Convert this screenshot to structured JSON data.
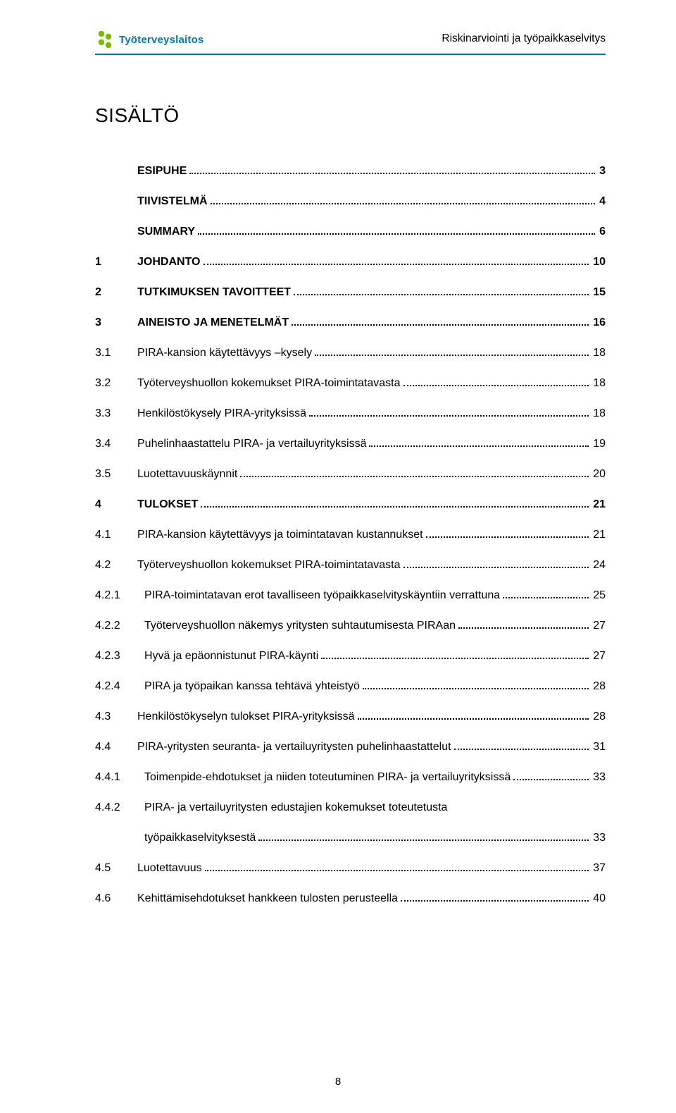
{
  "header": {
    "logo_text": "Työterveyslaitos",
    "doc_title": "Riskinarviointi ja työpaikkaselvitys",
    "logo_color": "#7ab800",
    "brand_color": "#0079a5"
  },
  "title": "SISÄLTÖ",
  "toc": [
    {
      "num": "",
      "label": "ESIPUHE",
      "page": "3",
      "bold": true,
      "num_w": "n"
    },
    {
      "num": "",
      "label": "TIIVISTELMÄ",
      "page": "4",
      "bold": true,
      "num_w": "n"
    },
    {
      "num": "",
      "label": "SUMMARY",
      "page": "6",
      "bold": true,
      "num_w": "n"
    },
    {
      "num": "1",
      "label": "JOHDANTO",
      "page": "10",
      "bold": true,
      "num_w": "n"
    },
    {
      "num": "2",
      "label": "TUTKIMUKSEN TAVOITTEET",
      "page": "15",
      "bold": true,
      "num_w": "n"
    },
    {
      "num": "3",
      "label": "AINEISTO JA MENETELMÄT",
      "page": "16",
      "bold": true,
      "num_w": "n"
    },
    {
      "num": "3.1",
      "label": "PIRA-kansion käytettävyys –kysely",
      "page": "18",
      "bold": false,
      "num_w": "n"
    },
    {
      "num": "3.2",
      "label": "Työterveyshuollon kokemukset PIRA-toimintatavasta",
      "page": "18",
      "bold": false,
      "num_w": "n"
    },
    {
      "num": "3.3",
      "label": "Henkilöstökysely PIRA-yrityksissä",
      "page": "18",
      "bold": false,
      "num_w": "n"
    },
    {
      "num": "3.4",
      "label": "Puhelinhaastattelu PIRA- ja vertailuyrityksissä",
      "page": "19",
      "bold": false,
      "num_w": "n"
    },
    {
      "num": "3.5",
      "label": "Luotettavuuskäynnit",
      "page": "20",
      "bold": false,
      "num_w": "n"
    },
    {
      "num": "4",
      "label": "TULOKSET",
      "page": "21",
      "bold": true,
      "num_w": "n"
    },
    {
      "num": "4.1",
      "label": "PIRA-kansion käytettävyys ja toimintatavan kustannukset",
      "page": "21",
      "bold": false,
      "num_w": "n"
    },
    {
      "num": "4.2",
      "label": "Työterveyshuollon kokemukset PIRA-toimintatavasta",
      "page": "24",
      "bold": false,
      "num_w": "n"
    },
    {
      "num": "4.2.1",
      "label": "PIRA-toimintatavan erot tavalliseen työpaikkaselvityskäyntiin verrattuna",
      "page": "25",
      "bold": false,
      "num_w": "w"
    },
    {
      "num": "4.2.2",
      "label": "Työterveyshuollon näkemys yritysten suhtautumisesta PIRAan",
      "page": "27",
      "bold": false,
      "num_w": "w"
    },
    {
      "num": "4.2.3",
      "label": "Hyvä ja epäonnistunut PIRA-käynti",
      "page": "27",
      "bold": false,
      "num_w": "w"
    },
    {
      "num": "4.2.4",
      "label": "PIRA ja työpaikan kanssa tehtävä yhteistyö",
      "page": "28",
      "bold": false,
      "num_w": "w"
    },
    {
      "num": "4.3",
      "label": "Henkilöstökyselyn tulokset PIRA-yrityksissä",
      "page": "28",
      "bold": false,
      "num_w": "n"
    },
    {
      "num": "4.4",
      "label": "PIRA-yritysten seuranta- ja vertailuyritysten puhelinhaastattelut",
      "page": "31",
      "bold": false,
      "num_w": "n"
    },
    {
      "num": "4.4.1",
      "label": "Toimenpide-ehdotukset ja niiden toteutuminen PIRA- ja vertailuyrityksissä",
      "page": "33",
      "bold": false,
      "num_w": "w"
    }
  ],
  "toc_multi": {
    "num": "4.4.2",
    "line1": "PIRA- ja vertailuyritysten edustajien kokemukset toteutetusta",
    "line2": "työpaikkaselvityksestä",
    "page": "33"
  },
  "toc_tail": [
    {
      "num": "4.5",
      "label": "Luotettavuus",
      "page": "37",
      "bold": false,
      "num_w": "n"
    },
    {
      "num": "4.6",
      "label": "Kehittämisehdotukset hankkeen tulosten perusteella",
      "page": "40",
      "bold": false,
      "num_w": "n"
    }
  ],
  "page_number": "8"
}
